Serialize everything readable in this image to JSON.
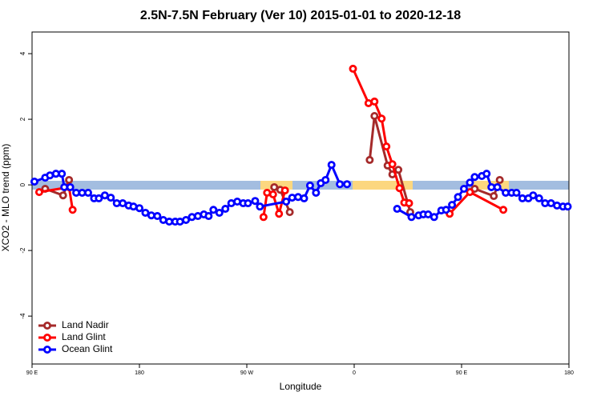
{
  "chart_data": {
    "type": "line",
    "title": "2.5N-7.5N February (Ver 10)   2015-01-01 to 2020-12-18",
    "x_label": "Longitude",
    "y_label": "XCO2 - MLO trend (ppm)",
    "xlim": [
      90,
      540
    ],
    "xticks": [
      {
        "value": 90,
        "label": "90 E"
      },
      180,
      {
        "value": 270,
        "label": "90 W"
      },
      {
        "value": 360,
        "label": "0"
      },
      {
        "value": 450,
        "label": "90 E"
      },
      {
        "value": 540,
        "label": "180"
      }
    ],
    "ylim": [
      -5.46,
      4.66
    ],
    "yticks": [
      -4,
      -2,
      0,
      2,
      4
    ],
    "legend": "bottom-left",
    "series": [
      {
        "name": "Land Nadir",
        "color": "#a52a2a",
        "x": [
          101,
          116,
          121,
          200,
          293,
          298,
          306,
          350,
          373,
          377,
          388,
          392,
          397,
          407,
          430,
          461,
          477,
          482
        ],
        "values": [
          -0.12,
          -0.32,
          0.15,
          null,
          -0.07,
          -0.15,
          -0.83,
          null,
          0.76,
          2.1,
          0.59,
          0.32,
          0.46,
          -0.83,
          null,
          -0.12,
          -0.34,
          0.15
        ]
      },
      {
        "name": "Land Glint",
        "color": "#ff0000",
        "x": [
          96,
          121,
          124,
          200,
          284,
          287,
          292,
          297,
          302,
          330,
          359,
          372,
          377,
          383,
          387,
          392,
          398,
          402,
          406,
          420,
          440,
          457,
          485
        ],
        "values": [
          -0.22,
          -0.07,
          -0.76,
          null,
          -0.98,
          -0.24,
          -0.29,
          -0.88,
          -0.17,
          null,
          3.54,
          2.49,
          2.54,
          2.02,
          1.17,
          0.63,
          -0.1,
          -0.54,
          -0.56,
          null,
          -0.88,
          -0.22,
          -0.76
        ]
      },
      {
        "name": "Ocean Glint",
        "color": "#0000ff",
        "x": [
          92,
          101,
          105,
          110,
          115,
          117,
          122,
          127,
          132,
          137,
          142,
          146,
          151,
          156,
          161,
          166,
          171,
          175,
          180,
          185,
          190,
          195,
          200,
          205,
          210,
          214,
          219,
          224,
          229,
          234,
          238,
          242,
          247,
          252,
          257,
          262,
          267,
          271,
          277,
          281,
          303,
          308,
          313,
          318,
          323,
          328,
          332,
          336,
          341,
          348,
          354,
          375,
          396,
          408,
          414,
          418,
          422,
          427,
          433,
          437,
          442,
          447,
          452,
          457,
          461,
          467,
          471,
          475,
          480,
          487,
          492,
          496,
          501,
          506,
          510,
          515,
          520,
          525,
          530,
          535,
          539
        ],
        "values": [
          0.1,
          0.22,
          0.29,
          0.34,
          0.34,
          -0.07,
          -0.07,
          -0.24,
          -0.24,
          -0.24,
          -0.41,
          -0.41,
          -0.32,
          -0.39,
          -0.56,
          -0.56,
          -0.63,
          -0.66,
          -0.71,
          -0.85,
          -0.93,
          -0.95,
          -1.07,
          -1.12,
          -1.12,
          -1.12,
          -1.07,
          -0.98,
          -0.95,
          -0.9,
          -0.95,
          -0.76,
          -0.85,
          -0.73,
          -0.56,
          -0.51,
          -0.56,
          -0.56,
          -0.49,
          -0.66,
          -0.51,
          -0.39,
          -0.37,
          -0.41,
          -0.02,
          -0.24,
          0.05,
          0.15,
          0.61,
          0.02,
          0.02,
          null,
          -0.73,
          -0.98,
          -0.93,
          -0.9,
          -0.9,
          -0.98,
          -0.78,
          -0.76,
          -0.61,
          -0.37,
          -0.12,
          0.07,
          0.24,
          0.27,
          0.34,
          -0.07,
          -0.07,
          -0.24,
          -0.24,
          -0.24,
          -0.41,
          -0.41,
          -0.32,
          -0.41,
          -0.56,
          -0.56,
          -0.63,
          -0.66,
          -0.66
        ]
      }
    ]
  }
}
